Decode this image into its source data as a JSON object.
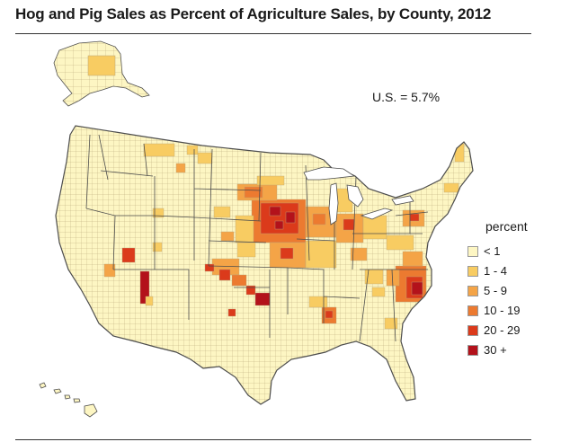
{
  "title": "Hog and Pig Sales as Percent of Agriculture Sales, by County, 2012",
  "us_average": "U.S. = 5.7%",
  "legend": {
    "title": "percent",
    "items": [
      {
        "label": "< 1",
        "color": "#fdf6c3"
      },
      {
        "label": "1 - 4",
        "color": "#f8cc62"
      },
      {
        "label": "5 - 9",
        "color": "#f4a447"
      },
      {
        "label": "10 - 19",
        "color": "#ec7a30"
      },
      {
        "label": "20 - 29",
        "color": "#db3a1b"
      },
      {
        "label": "30 +",
        "color": "#b3121b"
      }
    ]
  },
  "colors": {
    "base": "#fdf6c3",
    "county_line": "#b8a57a",
    "state_line": "#4d4d4d",
    "water": "#ffffff"
  }
}
